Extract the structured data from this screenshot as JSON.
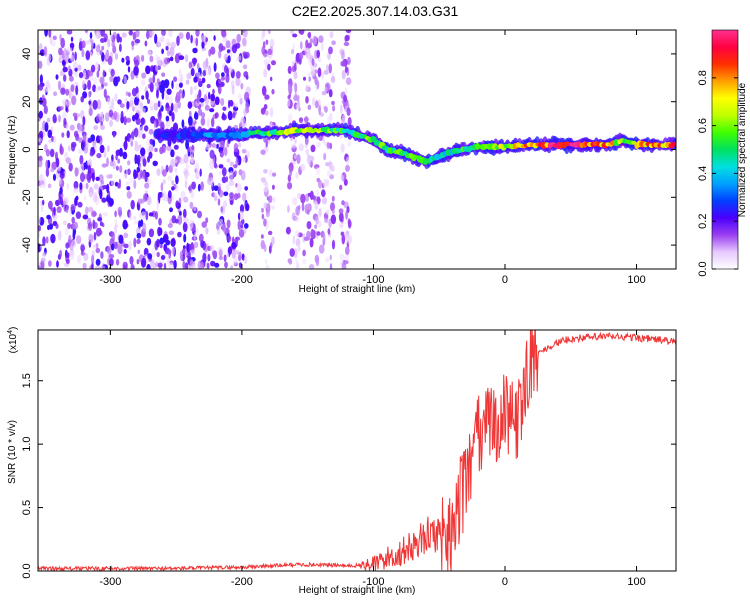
{
  "title": "C2E2.2025.307.14.03.G31",
  "chart_data": [
    {
      "type": "heatmap",
      "name": "spectrogram",
      "xlabel": "Height of straight line (km)",
      "ylabel": "Frequency (Hz)",
      "xlim": [
        -355,
        130
      ],
      "ylim": [
        -50,
        50
      ],
      "xticks": [
        -300,
        -200,
        -100,
        0,
        100
      ],
      "xtick_labels": [
        "-300",
        "-200",
        "-100",
        "0",
        "100"
      ],
      "yticks": [
        -40,
        -20,
        0,
        20,
        40
      ],
      "ytick_labels": [
        "-40",
        "-20",
        "0",
        "20",
        "40"
      ],
      "noise_regions": [
        {
          "x": [
            -355,
            -195
          ],
          "density": "high"
        },
        {
          "x": [
            -185,
            -175
          ],
          "density": "low"
        },
        {
          "x": [
            -165,
            -130
          ],
          "density": "medium"
        },
        {
          "x": [
            -125,
            -118
          ],
          "density": "low"
        }
      ],
      "ridge": {
        "x": [
          -265,
          -240,
          -225,
          -200,
          -190,
          -175,
          -160,
          -145,
          -130,
          -120,
          -110,
          -100,
          -90,
          -80,
          -70,
          -60,
          -50,
          -40,
          -30,
          -20,
          -10,
          0,
          20,
          40,
          60,
          80,
          90,
          100,
          130
        ],
        "y": [
          6,
          6,
          6,
          6,
          7,
          7,
          8,
          8,
          8,
          8,
          6,
          4,
          0,
          -1,
          -3,
          -5,
          -3,
          -1,
          0,
          1,
          1,
          1,
          2,
          2,
          2,
          2,
          4,
          2,
          2
        ],
        "amplitude": [
          0.25,
          0.3,
          0.4,
          0.35,
          0.5,
          0.6,
          0.7,
          0.65,
          0.6,
          0.5,
          0.55,
          0.6,
          0.55,
          0.55,
          0.6,
          0.5,
          0.45,
          0.5,
          0.55,
          0.55,
          0.6,
          0.7,
          0.9,
          0.95,
          0.95,
          0.8,
          0.6,
          0.85,
          0.85
        ]
      },
      "colorbar": {
        "label": "Normalized spectral amplitude",
        "range": [
          0.0,
          1.0
        ],
        "ticks": [
          0.0,
          0.2,
          0.4,
          0.6,
          0.8
        ],
        "tick_labels": [
          "0.0",
          "0.2",
          "0.4",
          "0.6",
          "0.8"
        ],
        "colors": [
          "#ffffff",
          "#e6c8ff",
          "#9a3ff0",
          "#4a00ff",
          "#0040ff",
          "#00a0ff",
          "#00e0e0",
          "#00e060",
          "#40ff00",
          "#c0ff00",
          "#ffff00",
          "#ffa000",
          "#ff3000",
          "#ff0040",
          "#ff3090"
        ]
      }
    },
    {
      "type": "line",
      "name": "snr",
      "xlabel": "Height of straight line (km)",
      "ylabel": "SNR (10 * v/v)",
      "y_multiplier": "(x10",
      "y_multiplier_exp": "4",
      "y_multiplier_close": ")",
      "color": "#ef3535",
      "xlim": [
        -355,
        130
      ],
      "ylim": [
        0,
        1.9
      ],
      "xticks": [
        -300,
        -200,
        -100,
        0,
        100
      ],
      "xtick_labels": [
        "-300",
        "-200",
        "-100",
        "0",
        "100"
      ],
      "yticks": [
        0.0,
        0.5,
        1.0,
        1.5
      ],
      "ytick_labels": [
        "0.0",
        "0.5",
        "1.0",
        "1.5"
      ],
      "x": [
        -355,
        -300,
        -250,
        -200,
        -180,
        -160,
        -140,
        -120,
        -100,
        -90,
        -80,
        -70,
        -60,
        -50,
        -45,
        -40,
        -35,
        -30,
        -25,
        -20,
        -15,
        -10,
        -5,
        0,
        5,
        10,
        15,
        20,
        30,
        40,
        50,
        60,
        80,
        100,
        120,
        130
      ],
      "y": [
        0.02,
        0.02,
        0.02,
        0.03,
        0.04,
        0.05,
        0.05,
        0.04,
        0.05,
        0.1,
        0.14,
        0.2,
        0.28,
        0.3,
        0.3,
        0.35,
        0.55,
        0.65,
        0.85,
        1.05,
        1.1,
        1.15,
        1.2,
        1.22,
        1.3,
        1.15,
        1.5,
        1.65,
        1.75,
        1.8,
        1.83,
        1.84,
        1.85,
        1.84,
        1.82,
        1.8
      ]
    }
  ]
}
